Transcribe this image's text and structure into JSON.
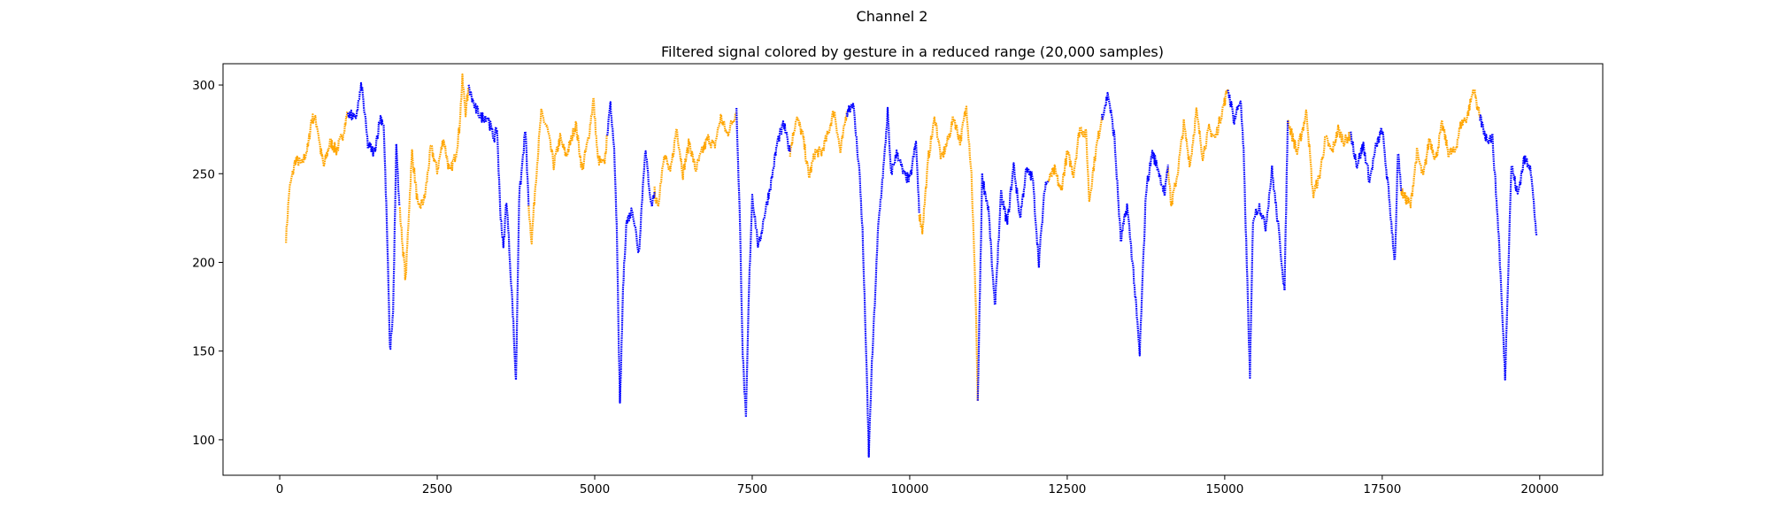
{
  "figure": {
    "suptitle": "Channel 2",
    "title": "Filtered signal colored by gesture in a reduced range (20,000 samples)"
  },
  "colors": {
    "blue": "#0000ff",
    "orange": "#ffa500",
    "axis": "#000000"
  },
  "chart_data": {
    "type": "scatter",
    "title": "Filtered signal colored by gesture in a reduced range (20,000 samples)",
    "xlabel": "",
    "ylabel": "",
    "xlim": [
      -900,
      21000
    ],
    "ylim": [
      80,
      312
    ],
    "xticks": [
      0,
      2500,
      5000,
      7500,
      10000,
      12500,
      15000,
      17500,
      20000
    ],
    "yticks": [
      100,
      150,
      200,
      250,
      300
    ],
    "grid": false,
    "legend": "none",
    "series": [
      {
        "color": "#ffa500",
        "segments": [
          [
            [
              100,
              214
            ],
            [
              150,
              240
            ],
            [
              250,
              258
            ],
            [
              350,
              255
            ],
            [
              450,
              265
            ],
            [
              500,
              280
            ],
            [
              550,
              282
            ],
            [
              600,
              276
            ],
            [
              650,
              263
            ],
            [
              700,
              254
            ],
            [
              800,
              268
            ],
            [
              900,
              263
            ],
            [
              1000,
              272
            ],
            [
              1080,
              285
            ]
          ],
          [
            [
              1900,
              232
            ],
            [
              1950,
              210
            ],
            [
              2000,
              190
            ],
            [
              2050,
              228
            ],
            [
              2100,
              262
            ],
            [
              2200,
              230
            ],
            [
              2300,
              236
            ],
            [
              2400,
              265
            ],
            [
              2500,
              252
            ],
            [
              2600,
              270
            ],
            [
              2700,
              250
            ],
            [
              2800,
              262
            ],
            [
              2850,
              275
            ],
            [
              2900,
              303
            ],
            [
              2950,
              285
            ],
            [
              3000,
              298
            ]
          ],
          [
            [
              3950,
              232
            ],
            [
              4000,
              212
            ],
            [
              4050,
              240
            ],
            [
              4150,
              284
            ],
            [
              4250,
              275
            ],
            [
              4350,
              255
            ],
            [
              4450,
              270
            ],
            [
              4550,
              260
            ],
            [
              4700,
              278
            ],
            [
              4800,
              252
            ],
            [
              4900,
              270
            ],
            [
              4980,
              292
            ],
            [
              5050,
              258
            ],
            [
              5150,
              255
            ],
            [
              5200,
              272
            ]
          ],
          [
            [
              5950,
              240
            ],
            [
              6000,
              230
            ],
            [
              6100,
              262
            ],
            [
              6200,
              250
            ],
            [
              6300,
              276
            ],
            [
              6400,
              250
            ],
            [
              6500,
              268
            ],
            [
              6600,
              252
            ],
            [
              6700,
              262
            ],
            [
              6800,
              270
            ],
            [
              6900,
              265
            ],
            [
              7000,
              282
            ],
            [
              7100,
              272
            ],
            [
              7250,
              285
            ]
          ],
          [
            [
              8100,
              262
            ],
            [
              8200,
              282
            ],
            [
              8300,
              272
            ],
            [
              8400,
              248
            ],
            [
              8500,
              262
            ],
            [
              8600,
              262
            ],
            [
              8700,
              272
            ],
            [
              8800,
              286
            ],
            [
              8900,
              262
            ],
            [
              9000,
              285
            ]
          ],
          [
            [
              10150,
              228
            ],
            [
              10200,
              218
            ],
            [
              10300,
              260
            ],
            [
              10400,
              282
            ],
            [
              10500,
              258
            ],
            [
              10600,
              268
            ],
            [
              10700,
              282
            ],
            [
              10800,
              268
            ],
            [
              10900,
              288
            ],
            [
              10980,
              250
            ],
            [
              11050,
              176
            ],
            [
              11080,
              122
            ]
          ],
          [
            [
              12200,
              246
            ],
            [
              12300,
              252
            ],
            [
              12400,
              240
            ],
            [
              12500,
              262
            ],
            [
              12600,
              250
            ],
            [
              12700,
              276
            ],
            [
              12800,
              272
            ],
            [
              12850,
              235
            ],
            [
              12950,
              262
            ],
            [
              13050,
              282
            ]
          ],
          [
            [
              14100,
              255
            ],
            [
              14150,
              232
            ],
            [
              14250,
              250
            ],
            [
              14350,
              278
            ],
            [
              14450,
              255
            ],
            [
              14550,
              285
            ],
            [
              14650,
              260
            ],
            [
              14750,
              275
            ],
            [
              14850,
              270
            ],
            [
              15050,
              298
            ]
          ],
          [
            [
              16000,
              280
            ],
            [
              16150,
              262
            ],
            [
              16300,
              285
            ],
            [
              16400,
              238
            ],
            [
              16500,
              248
            ],
            [
              16600,
              270
            ],
            [
              16700,
              262
            ],
            [
              16800,
              275
            ],
            [
              16900,
              268
            ],
            [
              17000,
              272
            ]
          ],
          [
            [
              17800,
              240
            ],
            [
              17950,
              232
            ],
            [
              18050,
              262
            ],
            [
              18150,
              248
            ],
            [
              18250,
              270
            ],
            [
              18350,
              258
            ],
            [
              18450,
              278
            ],
            [
              18550,
              262
            ],
            [
              18650,
              262
            ],
            [
              18750,
              278
            ],
            [
              18850,
              282
            ],
            [
              18950,
              298
            ],
            [
              19050,
              282
            ]
          ]
        ]
      },
      {
        "color": "#0000ff",
        "segments": [
          [
            [
              1080,
              285
            ],
            [
              1200,
              280
            ],
            [
              1300,
              300
            ],
            [
              1400,
              266
            ],
            [
              1500,
              262
            ],
            [
              1600,
              282
            ],
            [
              1650,
              278
            ],
            [
              1700,
              222
            ],
            [
              1750,
              150
            ],
            [
              1800,
              172
            ],
            [
              1850,
              265
            ],
            [
              1900,
              232
            ]
          ],
          [
            [
              3000,
              298
            ],
            [
              3100,
              287
            ],
            [
              3200,
              282
            ],
            [
              3300,
              282
            ],
            [
              3400,
              270
            ],
            [
              3450,
              275
            ],
            [
              3500,
              230
            ],
            [
              3550,
              208
            ],
            [
              3600,
              236
            ],
            [
              3700,
              172
            ],
            [
              3750,
              132
            ],
            [
              3800,
              236
            ],
            [
              3900,
              275
            ],
            [
              3950,
              232
            ]
          ],
          [
            [
              5200,
              272
            ],
            [
              5250,
              288
            ],
            [
              5300,
              270
            ],
            [
              5350,
              220
            ],
            [
              5400,
              118
            ],
            [
              5450,
              185
            ],
            [
              5500,
              222
            ],
            [
              5600,
              230
            ],
            [
              5700,
              205
            ],
            [
              5800,
              264
            ],
            [
              5900,
              232
            ],
            [
              5950,
              240
            ]
          ],
          [
            [
              7250,
              285
            ],
            [
              7300,
              230
            ],
            [
              7350,
              148
            ],
            [
              7400,
              110
            ],
            [
              7450,
              186
            ],
            [
              7500,
              238
            ],
            [
              7600,
              208
            ],
            [
              7700,
              228
            ],
            [
              7800,
              245
            ],
            [
              7900,
              268
            ],
            [
              8000,
              278
            ],
            [
              8100,
              262
            ]
          ],
          [
            [
              9000,
              285
            ],
            [
              9100,
              290
            ],
            [
              9200,
              252
            ],
            [
              9250,
              218
            ],
            [
              9300,
              160
            ],
            [
              9350,
              92
            ],
            [
              9400,
              142
            ],
            [
              9500,
              220
            ],
            [
              9600,
              260
            ],
            [
              9650,
              285
            ],
            [
              9700,
              250
            ],
            [
              9800,
              262
            ],
            [
              9900,
              250
            ],
            [
              10000,
              246
            ],
            [
              10100,
              268
            ],
            [
              10150,
              228
            ]
          ],
          [
            [
              11080,
              122
            ],
            [
              11150,
              248
            ],
            [
              11250,
              230
            ],
            [
              11350,
              174
            ],
            [
              11450,
              238
            ],
            [
              11550,
              222
            ],
            [
              11650,
              255
            ],
            [
              11750,
              225
            ],
            [
              11850,
              252
            ],
            [
              11950,
              248
            ],
            [
              12050,
              200
            ],
            [
              12150,
              244
            ],
            [
              12200,
              246
            ]
          ],
          [
            [
              13050,
              282
            ],
            [
              13150,
              295
            ],
            [
              13250,
              270
            ],
            [
              13350,
              212
            ],
            [
              13450,
              232
            ],
            [
              13550,
              195
            ],
            [
              13650,
              148
            ],
            [
              13750,
              240
            ],
            [
              13850,
              262
            ],
            [
              13950,
              252
            ],
            [
              14050,
              238
            ],
            [
              14100,
              255
            ]
          ],
          [
            [
              15050,
              298
            ],
            [
              15150,
              280
            ],
            [
              15250,
              292
            ],
            [
              15300,
              262
            ],
            [
              15350,
              200
            ],
            [
              15400,
              134
            ],
            [
              15450,
              225
            ],
            [
              15550,
              232
            ],
            [
              15650,
              220
            ],
            [
              15750,
              252
            ],
            [
              15850,
              220
            ],
            [
              15950,
              184
            ],
            [
              16000,
              280
            ]
          ],
          [
            [
              17000,
              272
            ],
            [
              17100,
              255
            ],
            [
              17200,
              266
            ],
            [
              17300,
              246
            ],
            [
              17400,
              265
            ],
            [
              17500,
              275
            ],
            [
              17600,
              240
            ],
            [
              17700,
              200
            ],
            [
              17750,
              262
            ],
            [
              17800,
              240
            ]
          ],
          [
            [
              19050,
              282
            ],
            [
              19150,
              270
            ],
            [
              19250,
              270
            ],
            [
              19350,
              215
            ],
            [
              19450,
              135
            ],
            [
              19550,
              255
            ],
            [
              19650,
              238
            ],
            [
              19750,
              258
            ],
            [
              19850,
              255
            ],
            [
              19950,
              215
            ]
          ]
        ]
      }
    ]
  }
}
